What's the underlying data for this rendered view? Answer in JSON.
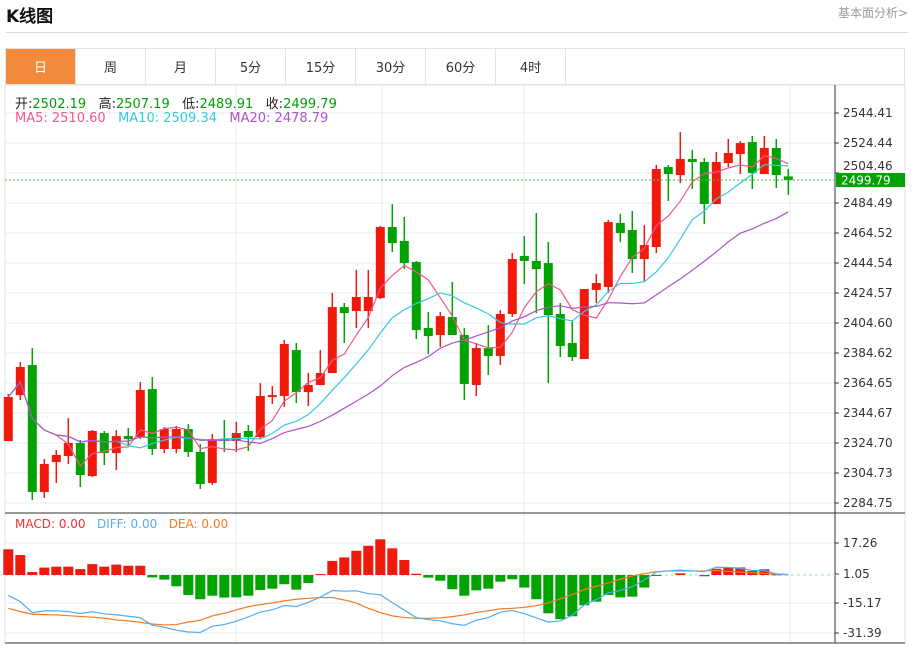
{
  "header": {
    "title": "K线图",
    "link": "基本面分析>"
  },
  "tabs": [
    {
      "label": "日",
      "active": true
    },
    {
      "label": "周"
    },
    {
      "label": "月"
    },
    {
      "label": "5分"
    },
    {
      "label": "15分"
    },
    {
      "label": "30分"
    },
    {
      "label": "60分"
    },
    {
      "label": "4时"
    }
  ],
  "info": {
    "open_label": "开:",
    "open": "2502.19",
    "high_label": "高:",
    "high": "2507.19",
    "low_label": "低:",
    "low": "2489.91",
    "close_label": "收:",
    "close": "2499.79",
    "ma5": "MA5: 2510.60",
    "ma10": "MA10: 2509.34",
    "ma20": "MA20: 2478.79"
  },
  "macd_info": {
    "macd": "MACD: 0.00",
    "diff": "DIFF: 0.00",
    "dea": "DEA: 0.00"
  },
  "colors": {
    "up": "#f01a0c",
    "down": "#00a300",
    "ma5": "#f0578a",
    "ma10": "#36c8e0",
    "ma20": "#b052c8",
    "diff": "#55aaf0",
    "dea": "#f57a1f",
    "tab_active": "#f28c3c"
  },
  "chart_data": {
    "type": "candlestick",
    "price_ticks": [
      "2544.41",
      "2524.44",
      "2504.46",
      "2484.49",
      "2464.52",
      "2444.54",
      "2424.57",
      "2404.60",
      "2384.62",
      "2364.65",
      "2344.67",
      "2324.70",
      "2304.73",
      "2284.75"
    ],
    "price_range": [
      2284.75,
      2544.41
    ],
    "last_price": "2499.79",
    "macd_ticks": [
      "17.26",
      "1.05",
      "-15.17",
      "-31.39"
    ],
    "ohlc": [
      [
        2326.0,
        2357.3,
        2326.0,
        2355.3
      ],
      [
        2356.6,
        2378.6,
        2353.3,
        2375.3
      ],
      [
        2376.6,
        2387.9,
        2286.7,
        2292.1
      ],
      [
        2292.1,
        2314.0,
        2288.1,
        2310.7
      ],
      [
        2312.0,
        2320.0,
        2298.1,
        2316.7
      ],
      [
        2316.0,
        2341.3,
        2310.7,
        2324.7
      ],
      [
        2324.7,
        2326.7,
        2295.4,
        2303.4
      ],
      [
        2302.7,
        2333.3,
        2302.0,
        2332.7
      ],
      [
        2331.3,
        2332.7,
        2310.0,
        2318.0
      ],
      [
        2318.0,
        2333.3,
        2306.7,
        2329.3
      ],
      [
        2329.3,
        2334.7,
        2323.4,
        2327.3
      ],
      [
        2328.7,
        2365.3,
        2327.3,
        2360.0
      ],
      [
        2360.6,
        2368.6,
        2316.7,
        2320.7
      ],
      [
        2320.7,
        2335.3,
        2318.0,
        2334.0
      ],
      [
        2320.7,
        2336.0,
        2318.0,
        2334.0
      ],
      [
        2334.0,
        2337.3,
        2315.4,
        2318.7
      ],
      [
        2318.7,
        2324.0,
        2294.1,
        2297.4
      ],
      [
        2298.1,
        2330.7,
        2296.7,
        2327.3
      ],
      [
        2327.3,
        2340.0,
        2318.7,
        2326.0
      ],
      [
        2326.0,
        2338.7,
        2318.7,
        2331.3
      ],
      [
        2332.7,
        2336.7,
        2319.4,
        2328.7
      ],
      [
        2328.7,
        2364.6,
        2327.3,
        2356.0
      ],
      [
        2356.0,
        2362.6,
        2350.7,
        2356.6
      ],
      [
        2356.0,
        2393.3,
        2348.7,
        2390.6
      ],
      [
        2386.6,
        2391.3,
        2351.3,
        2358.6
      ],
      [
        2358.6,
        2371.3,
        2349.3,
        2363.3
      ],
      [
        2363.3,
        2386.6,
        2363.3,
        2371.3
      ],
      [
        2371.3,
        2424.6,
        2371.3,
        2415.2
      ],
      [
        2415.2,
        2417.9,
        2391.3,
        2411.2
      ],
      [
        2412.6,
        2439.9,
        2401.3,
        2421.9
      ],
      [
        2412.6,
        2439.9,
        2401.3,
        2421.9
      ],
      [
        2421.2,
        2469.2,
        2420.6,
        2468.5
      ],
      [
        2468.5,
        2483.8,
        2451.9,
        2457.8
      ],
      [
        2459.2,
        2475.2,
        2440.5,
        2444.5
      ],
      [
        2445.2,
        2445.9,
        2393.9,
        2399.9
      ],
      [
        2401.3,
        2411.9,
        2383.9,
        2395.9
      ],
      [
        2396.6,
        2411.9,
        2388.6,
        2409.2
      ],
      [
        2408.6,
        2431.9,
        2396.6,
        2396.6
      ],
      [
        2396.6,
        2401.3,
        2353.3,
        2364.0
      ],
      [
        2363.3,
        2391.3,
        2356.0,
        2387.9
      ],
      [
        2387.9,
        2403.2,
        2370.0,
        2382.6
      ],
      [
        2382.6,
        2413.2,
        2376.6,
        2410.6
      ],
      [
        2410.6,
        2451.2,
        2408.6,
        2447.2
      ],
      [
        2449.2,
        2462.5,
        2430.5,
        2445.9
      ],
      [
        2445.9,
        2477.8,
        2411.2,
        2440.5
      ],
      [
        2444.5,
        2458.5,
        2364.6,
        2409.9
      ],
      [
        2410.6,
        2417.9,
        2381.9,
        2389.3
      ],
      [
        2391.3,
        2406.6,
        2379.3,
        2381.9
      ],
      [
        2380.6,
        2427.2,
        2380.6,
        2427.2
      ],
      [
        2426.6,
        2437.2,
        2417.9,
        2431.2
      ],
      [
        2428.6,
        2473.2,
        2424.6,
        2471.8
      ],
      [
        2471.2,
        2477.2,
        2458.5,
        2464.5
      ],
      [
        2466.5,
        2479.2,
        2437.9,
        2447.2
      ],
      [
        2447.2,
        2469.8,
        2432.5,
        2456.5
      ],
      [
        2455.2,
        2509.8,
        2451.2,
        2507.1
      ],
      [
        2508.4,
        2509.8,
        2485.8,
        2503.8
      ],
      [
        2503.1,
        2531.7,
        2497.8,
        2513.8
      ],
      [
        2513.8,
        2519.8,
        2493.8,
        2511.8
      ],
      [
        2511.8,
        2514.4,
        2470.5,
        2483.8
      ],
      [
        2483.8,
        2518.4,
        2483.8,
        2511.8
      ],
      [
        2511.1,
        2527.1,
        2508.4,
        2517.8
      ],
      [
        2517.1,
        2525.8,
        2503.8,
        2524.4
      ],
      [
        2525.1,
        2529.1,
        2493.8,
        2504.5
      ],
      [
        2503.8,
        2529.1,
        2503.8,
        2521.1
      ],
      [
        2521.1,
        2527.1,
        2494.5,
        2503.1
      ],
      [
        2502.19,
        2507.19,
        2489.91,
        2499.79
      ]
    ],
    "macd_hist": [
      13.9,
      10.8,
      1.6,
      4.0,
      4.5,
      4.5,
      3.2,
      5.9,
      4.5,
      5.6,
      5.0,
      5.0,
      -1.3,
      -2.5,
      -6.1,
      -10.8,
      -13.1,
      -11.2,
      -12.2,
      -12.1,
      -11.2,
      -8.1,
      -7.4,
      -5.0,
      -7.9,
      -4.3,
      0.5,
      7.6,
      9.5,
      13.1,
      15.8,
      19.3,
      14.4,
      8.1,
      0.7,
      -1.4,
      -3.1,
      -7.7,
      -11.2,
      -8.3,
      -7.4,
      -3.6,
      -2.3,
      -6.8,
      -13.1,
      -20.7,
      -23.9,
      -22.3,
      -16.4,
      -14.4,
      -10.8,
      -12.1,
      -11.7,
      -6.8,
      -0.4,
      0,
      0.9,
      0,
      -0.7,
      3.4,
      4.1,
      4.1,
      2.2,
      3.1,
      0.4,
      0
    ],
    "dea": [
      -18.0,
      -19.8,
      -21.2,
      -21.4,
      -21.6,
      -22.0,
      -22.4,
      -22.8,
      -23.3,
      -24.3,
      -24.8,
      -25.6,
      -26.5,
      -27.0,
      -26.8,
      -25.4,
      -24.5,
      -22.1,
      -20.7,
      -18.9,
      -17.1,
      -16.0,
      -15.1,
      -14.0,
      -13.1,
      -12.6,
      -12.2,
      -12.2,
      -13.5,
      -15.1,
      -18.0,
      -20.3,
      -22.1,
      -23.0,
      -23.4,
      -23.4,
      -23.2,
      -22.5,
      -21.6,
      -20.3,
      -19.3,
      -18.3,
      -18.0,
      -17.5,
      -16.6,
      -15.1,
      -12.9,
      -10.6,
      -7.9,
      -6.1,
      -4.3,
      -2.3,
      -0.5,
      0.7,
      1.8,
      2.2,
      2.2,
      2.2,
      2.2,
      2.5,
      2.0,
      1.6,
      1.3,
      0.9,
      0.4,
      0.2
    ]
  }
}
